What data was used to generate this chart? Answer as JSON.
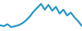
{
  "x": [
    0,
    1,
    2,
    3,
    4,
    5,
    6,
    7,
    8,
    9,
    10,
    11,
    12,
    13,
    14,
    15,
    16,
    17,
    18,
    19,
    20,
    21,
    22
  ],
  "y": [
    5,
    4.5,
    5.5,
    4,
    4.5,
    5,
    6,
    7.5,
    9.5,
    12,
    14,
    16,
    13,
    15.5,
    12.5,
    14.5,
    11,
    13,
    10,
    11.5,
    9,
    7,
    4.5
  ],
  "line_color": "#2196c8",
  "linewidth": 1.8,
  "ylim": [
    2,
    18
  ],
  "xlim": [
    0,
    22
  ],
  "background_color": "#ffffff"
}
